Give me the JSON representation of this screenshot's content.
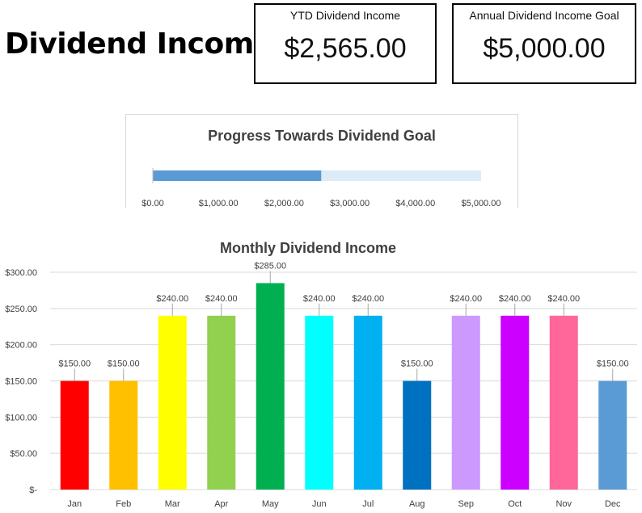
{
  "header": {
    "title": "Dividend Income",
    "ytd_label": "YTD Dividend Income",
    "ytd_value": "$2,565.00",
    "goal_label": "Annual Dividend Income Goal",
    "goal_value": "$5,000.00"
  },
  "chart_data": [
    {
      "type": "bar",
      "orientation": "horizontal",
      "title": "Progress Towards Dividend Goal",
      "value": 2565,
      "target": 5000,
      "xlim": [
        0,
        5000
      ],
      "x_ticks": [
        0,
        1000,
        2000,
        3000,
        4000,
        5000
      ],
      "x_tick_labels": [
        "$0.00",
        "$1,000.00",
        "$2,000.00",
        "$3,000.00",
        "$4,000.00",
        "$5,000.00"
      ],
      "colors": {
        "value": "#5b9bd5",
        "remaining": "#ddebf7"
      }
    },
    {
      "type": "bar",
      "title": "Monthly Dividend Income",
      "categories": [
        "Jan",
        "Feb",
        "Mar",
        "Apr",
        "May",
        "Jun",
        "Jul",
        "Aug",
        "Sep",
        "Oct",
        "Nov",
        "Dec"
      ],
      "values": [
        150,
        150,
        240,
        240,
        285,
        240,
        240,
        150,
        240,
        240,
        240,
        150
      ],
      "data_labels": [
        "$150.00",
        "$150.00",
        "$240.00",
        "$240.00",
        "$285.00",
        "$240.00",
        "$240.00",
        "$150.00",
        "$240.00",
        "$240.00",
        "$240.00",
        "$150.00"
      ],
      "colors": [
        "#ff0000",
        "#ffc000",
        "#ffff00",
        "#92d050",
        "#00b050",
        "#00ffff",
        "#00b0f0",
        "#0070c0",
        "#cc99ff",
        "#cc00ff",
        "#ff6699",
        "#5b9bd5"
      ],
      "ylim": [
        0,
        300
      ],
      "y_ticks": [
        0,
        50,
        100,
        150,
        200,
        250,
        300
      ],
      "y_tick_labels": [
        "$-",
        "$50.00",
        "$100.00",
        "$150.00",
        "$200.00",
        "$250.00",
        "$300.00"
      ],
      "grid": true,
      "legend": "none"
    }
  ]
}
